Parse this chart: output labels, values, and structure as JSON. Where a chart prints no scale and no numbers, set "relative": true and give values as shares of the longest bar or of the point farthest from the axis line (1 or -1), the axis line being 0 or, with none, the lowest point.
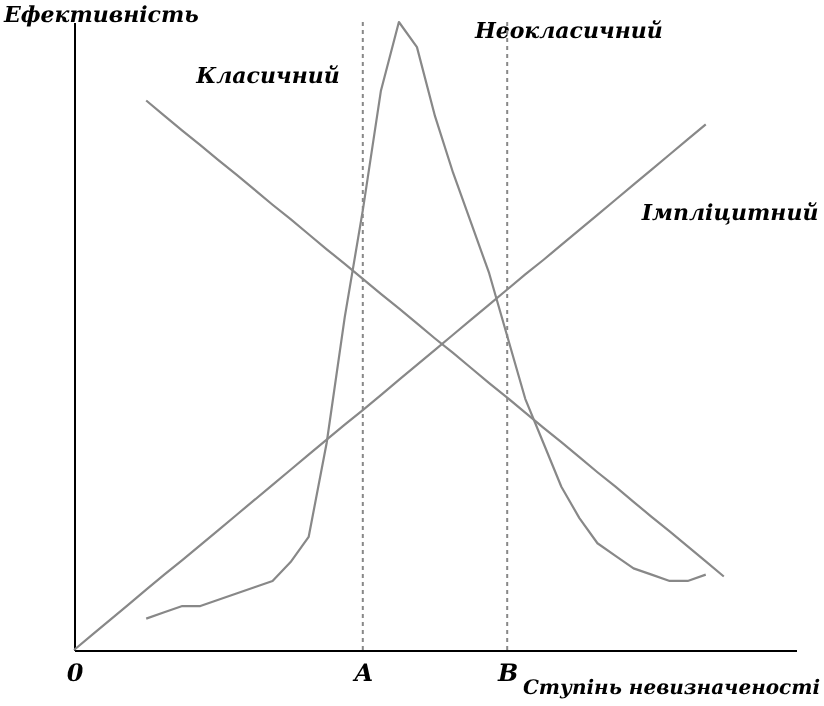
{
  "chart_data": {
    "type": "line",
    "relative": true,
    "xlabel": "Ступінь невизначеності",
    "ylabel": "Ефективність",
    "tick_labels": "x",
    "marker": "none",
    "line_style": "solid",
    "categories": [
      "0",
      null,
      null,
      null,
      null,
      null,
      null,
      null,
      null,
      null,
      null,
      null,
      null,
      null,
      null,
      null,
      "A",
      null,
      null,
      null,
      null,
      null,
      null,
      null,
      "B",
      null,
      null,
      null,
      null,
      null,
      null,
      null,
      null,
      null,
      null,
      null,
      null,
      null,
      null,
      null,
      null
    ],
    "ref_lines": [
      {
        "axis": "x",
        "value": "A",
        "line_style": "dotted",
        "color": "#888888"
      },
      {
        "axis": "x",
        "value": "B",
        "line_style": "dotted",
        "color": "#888888"
      }
    ],
    "series": [
      {
        "name": "Класичний",
        "color": "#888888",
        "values": [
          null,
          null,
          null,
          null,
          0.875,
          0.851,
          0.827,
          0.804,
          0.78,
          0.757,
          0.733,
          0.709,
          0.686,
          0.662,
          0.638,
          0.615,
          0.591,
          0.567,
          0.544,
          0.52,
          0.496,
          0.473,
          0.449,
          0.425,
          0.402,
          0.378,
          0.354,
          0.331,
          0.307,
          0.283,
          0.26,
          0.236,
          0.212,
          0.189,
          0.165,
          0.141,
          0.117,
          null,
          null,
          null,
          null
        ]
      },
      {
        "name": "Неокласичний",
        "color": "#888888",
        "values": [
          null,
          null,
          null,
          null,
          0.05,
          0.06,
          0.07,
          0.07,
          0.08,
          0.09,
          0.1,
          0.11,
          0.14,
          0.18,
          0.33,
          0.53,
          0.7,
          0.89,
          1.0,
          0.96,
          0.85,
          0.76,
          0.68,
          0.6,
          0.5,
          0.4,
          0.33,
          0.26,
          0.21,
          0.17,
          0.15,
          0.13,
          0.12,
          0.11,
          0.11,
          0.12,
          null,
          null,
          null,
          null,
          null
        ]
      },
      {
        "name": "Імпліцитний",
        "color": "#888888",
        "values": [
          0,
          0.024,
          0.048,
          0.072,
          0.096,
          0.12,
          0.143,
          0.167,
          0.191,
          0.215,
          0.239,
          0.263,
          0.287,
          0.311,
          0.335,
          0.359,
          0.382,
          0.406,
          0.43,
          0.454,
          0.478,
          0.502,
          0.526,
          0.55,
          0.574,
          0.598,
          0.621,
          0.645,
          0.669,
          0.693,
          0.717,
          0.741,
          0.765,
          0.789,
          0.813,
          0.837,
          null,
          null,
          null,
          null,
          null
        ]
      }
    ]
  }
}
